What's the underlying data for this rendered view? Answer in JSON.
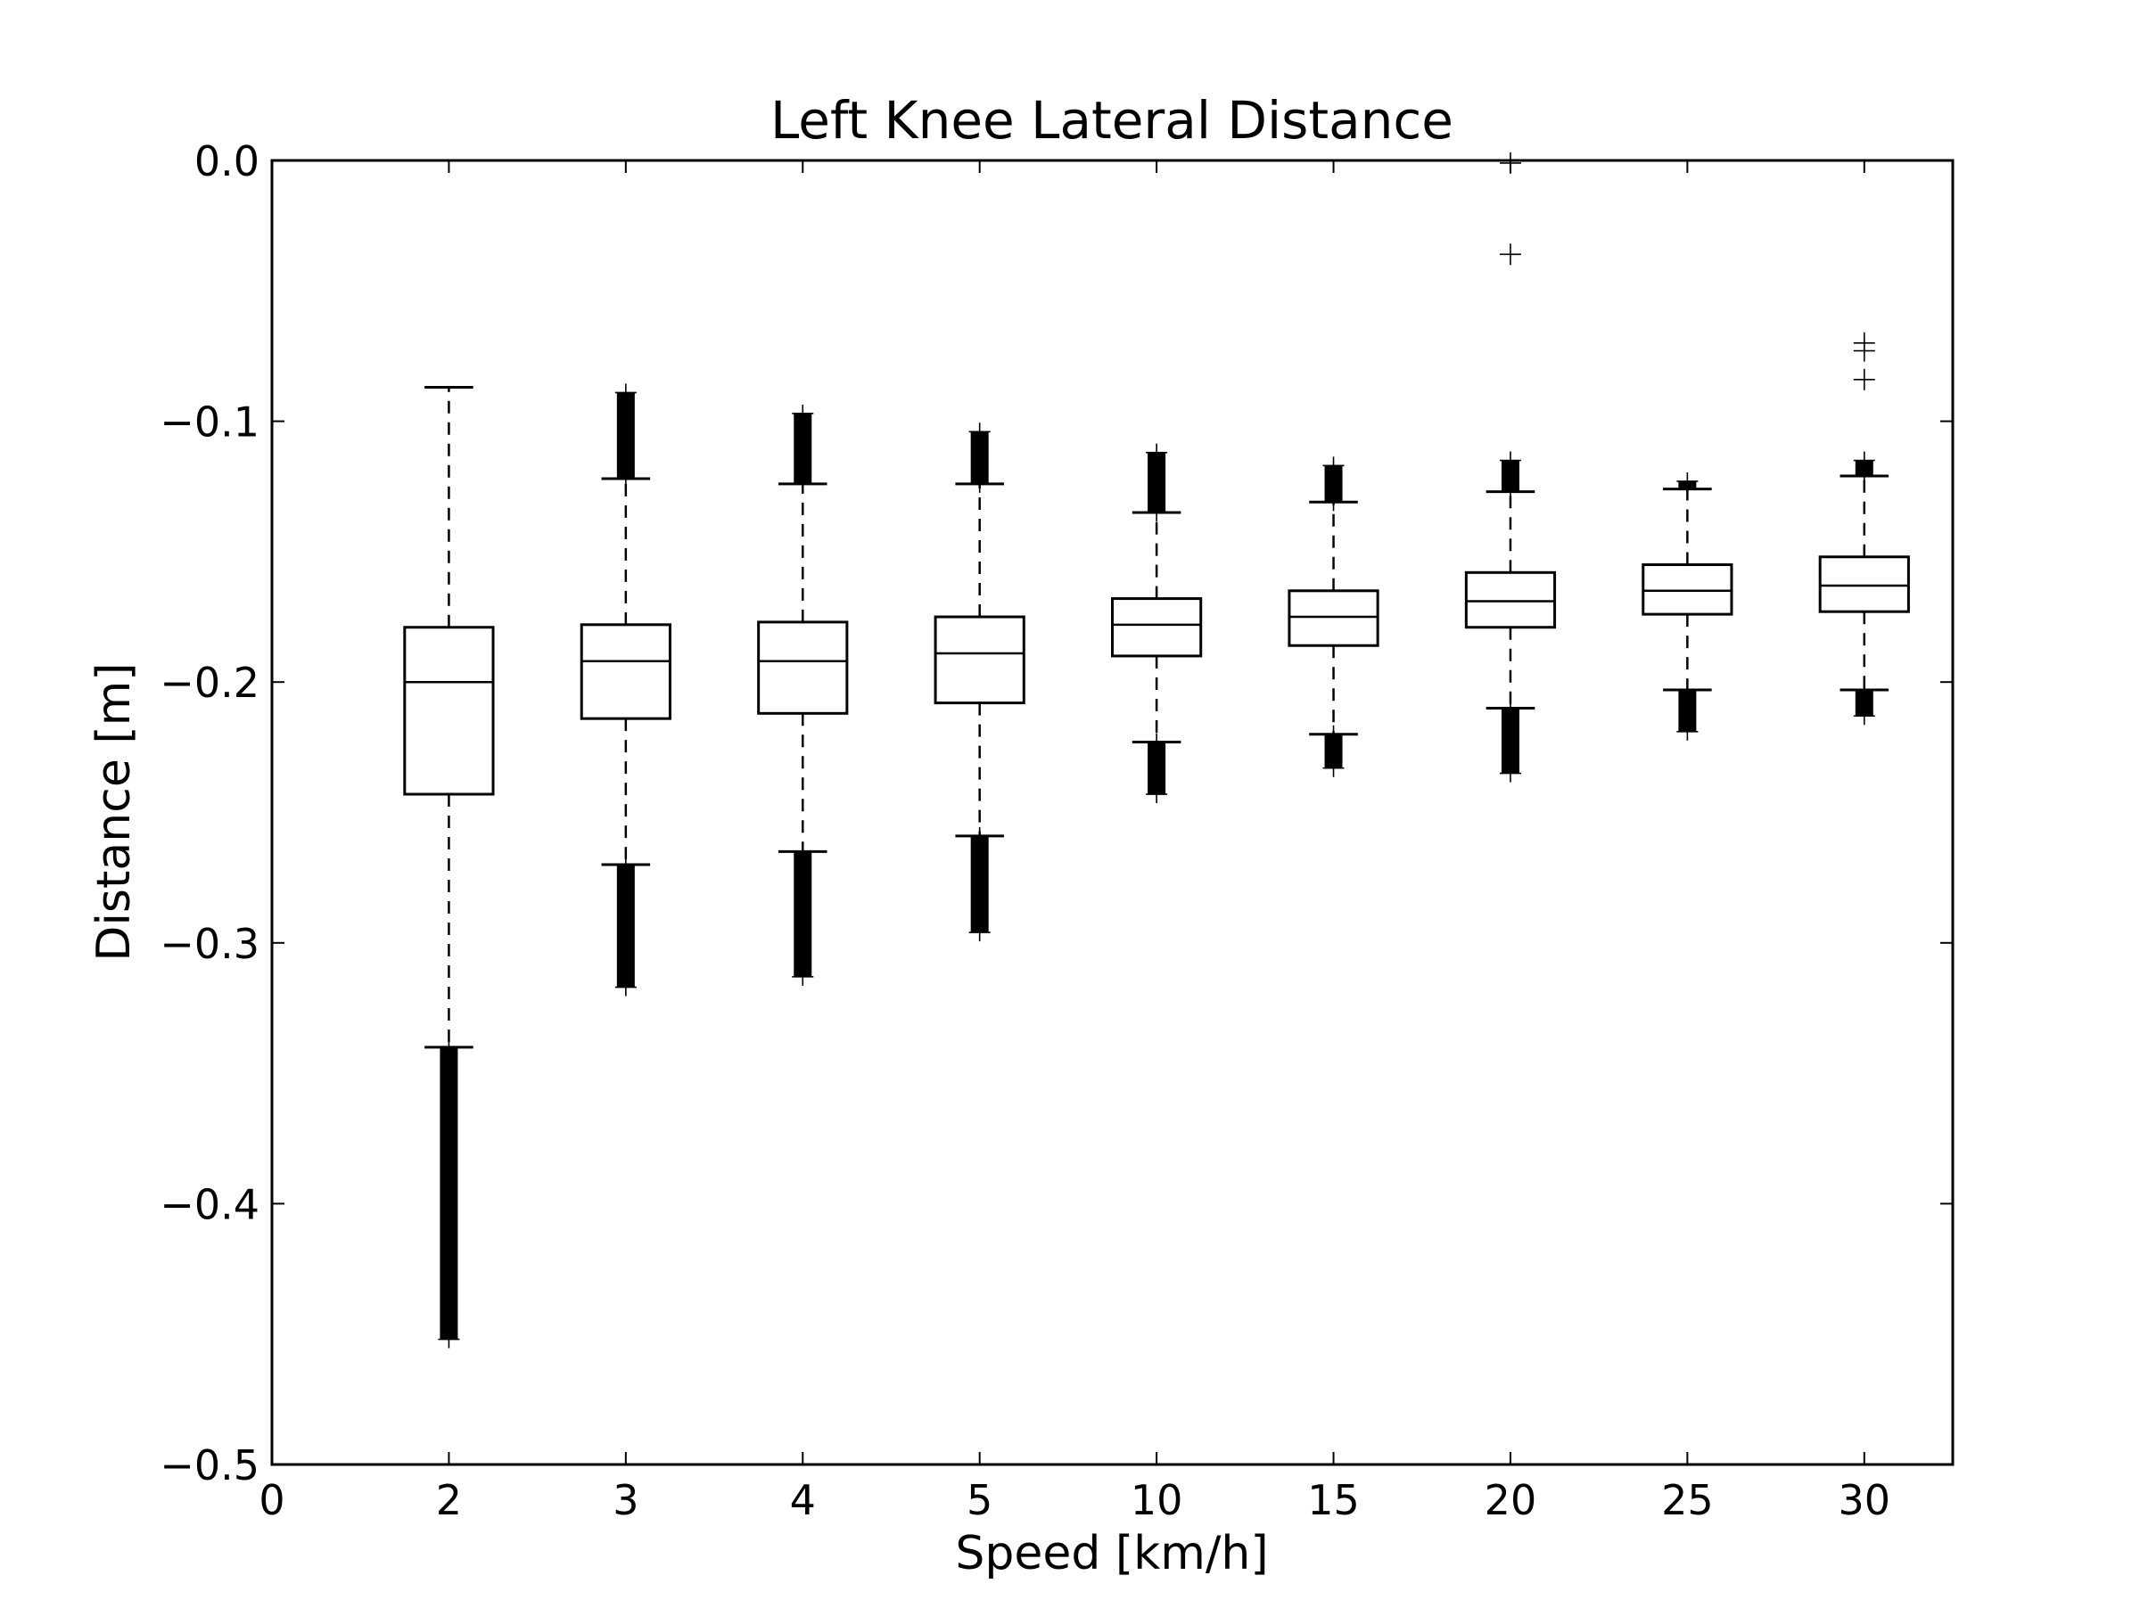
{
  "chart_data": {
    "type": "box",
    "title": "Left Knee Lateral Distance",
    "xlabel": "Speed [km/h]",
    "ylabel": "Distance [m]",
    "ylim": [
      -0.5,
      0.0
    ],
    "yticks": [
      "0.0",
      "−0.1",
      "−0.2",
      "−0.3",
      "−0.4",
      "−0.5"
    ],
    "ytick_values": [
      0.0,
      -0.1,
      -0.2,
      -0.3,
      -0.4,
      -0.5
    ],
    "xtick_labels": [
      "0",
      "2",
      "3",
      "4",
      "5",
      "10",
      "15",
      "20",
      "25",
      "30"
    ],
    "grid": false,
    "categories": [
      "2",
      "3",
      "4",
      "5",
      "10",
      "15",
      "20",
      "25",
      "30"
    ],
    "boxes": [
      {
        "category": "2",
        "whisker_low": -0.34,
        "q1": -0.243,
        "median": -0.2,
        "q3": -0.179,
        "whisker_high": -0.087,
        "outliers_low_range": [
          -0.452,
          -0.34
        ],
        "outliers_high_range": null,
        "outliers": []
      },
      {
        "category": "3",
        "whisker_low": -0.27,
        "q1": -0.214,
        "median": -0.192,
        "q3": -0.178,
        "whisker_high": -0.122,
        "outliers_low_range": [
          -0.317,
          -0.27
        ],
        "outliers_high_range": [
          -0.122,
          -0.089
        ],
        "outliers": []
      },
      {
        "category": "4",
        "whisker_low": -0.265,
        "q1": -0.212,
        "median": -0.192,
        "q3": -0.177,
        "whisker_high": -0.124,
        "outliers_low_range": [
          -0.313,
          -0.265
        ],
        "outliers_high_range": [
          -0.124,
          -0.097
        ],
        "outliers": []
      },
      {
        "category": "5",
        "whisker_low": -0.259,
        "q1": -0.208,
        "median": -0.189,
        "q3": -0.175,
        "whisker_high": -0.124,
        "outliers_low_range": [
          -0.296,
          -0.259
        ],
        "outliers_high_range": [
          -0.124,
          -0.104
        ],
        "outliers": []
      },
      {
        "category": "10",
        "whisker_low": -0.223,
        "q1": -0.19,
        "median": -0.178,
        "q3": -0.168,
        "whisker_high": -0.135,
        "outliers_low_range": [
          -0.243,
          -0.223
        ],
        "outliers_high_range": [
          -0.135,
          -0.112
        ],
        "outliers": []
      },
      {
        "category": "15",
        "whisker_low": -0.22,
        "q1": -0.186,
        "median": -0.175,
        "q3": -0.165,
        "whisker_high": -0.131,
        "outliers_low_range": [
          -0.233,
          -0.22
        ],
        "outliers_high_range": [
          -0.131,
          -0.117
        ],
        "outliers": []
      },
      {
        "category": "20",
        "whisker_low": -0.21,
        "q1": -0.179,
        "median": -0.169,
        "q3": -0.158,
        "whisker_high": -0.127,
        "outliers_low_range": [
          -0.235,
          -0.21
        ],
        "outliers_high_range": [
          -0.127,
          -0.115
        ],
        "outliers": [
          -0.001,
          -0.036
        ]
      },
      {
        "category": "25",
        "whisker_low": -0.203,
        "q1": -0.174,
        "median": -0.165,
        "q3": -0.155,
        "whisker_high": -0.126,
        "outliers_low_range": [
          -0.219,
          -0.203
        ],
        "outliers_high_range": [
          -0.126,
          -0.123
        ],
        "outliers": []
      },
      {
        "category": "30",
        "whisker_low": -0.203,
        "q1": -0.173,
        "median": -0.163,
        "q3": -0.152,
        "whisker_high": -0.121,
        "outliers_low_range": [
          -0.213,
          -0.203
        ],
        "outliers_high_range": [
          -0.121,
          -0.115
        ],
        "outliers": [
          -0.07,
          -0.073,
          -0.084
        ]
      }
    ]
  }
}
